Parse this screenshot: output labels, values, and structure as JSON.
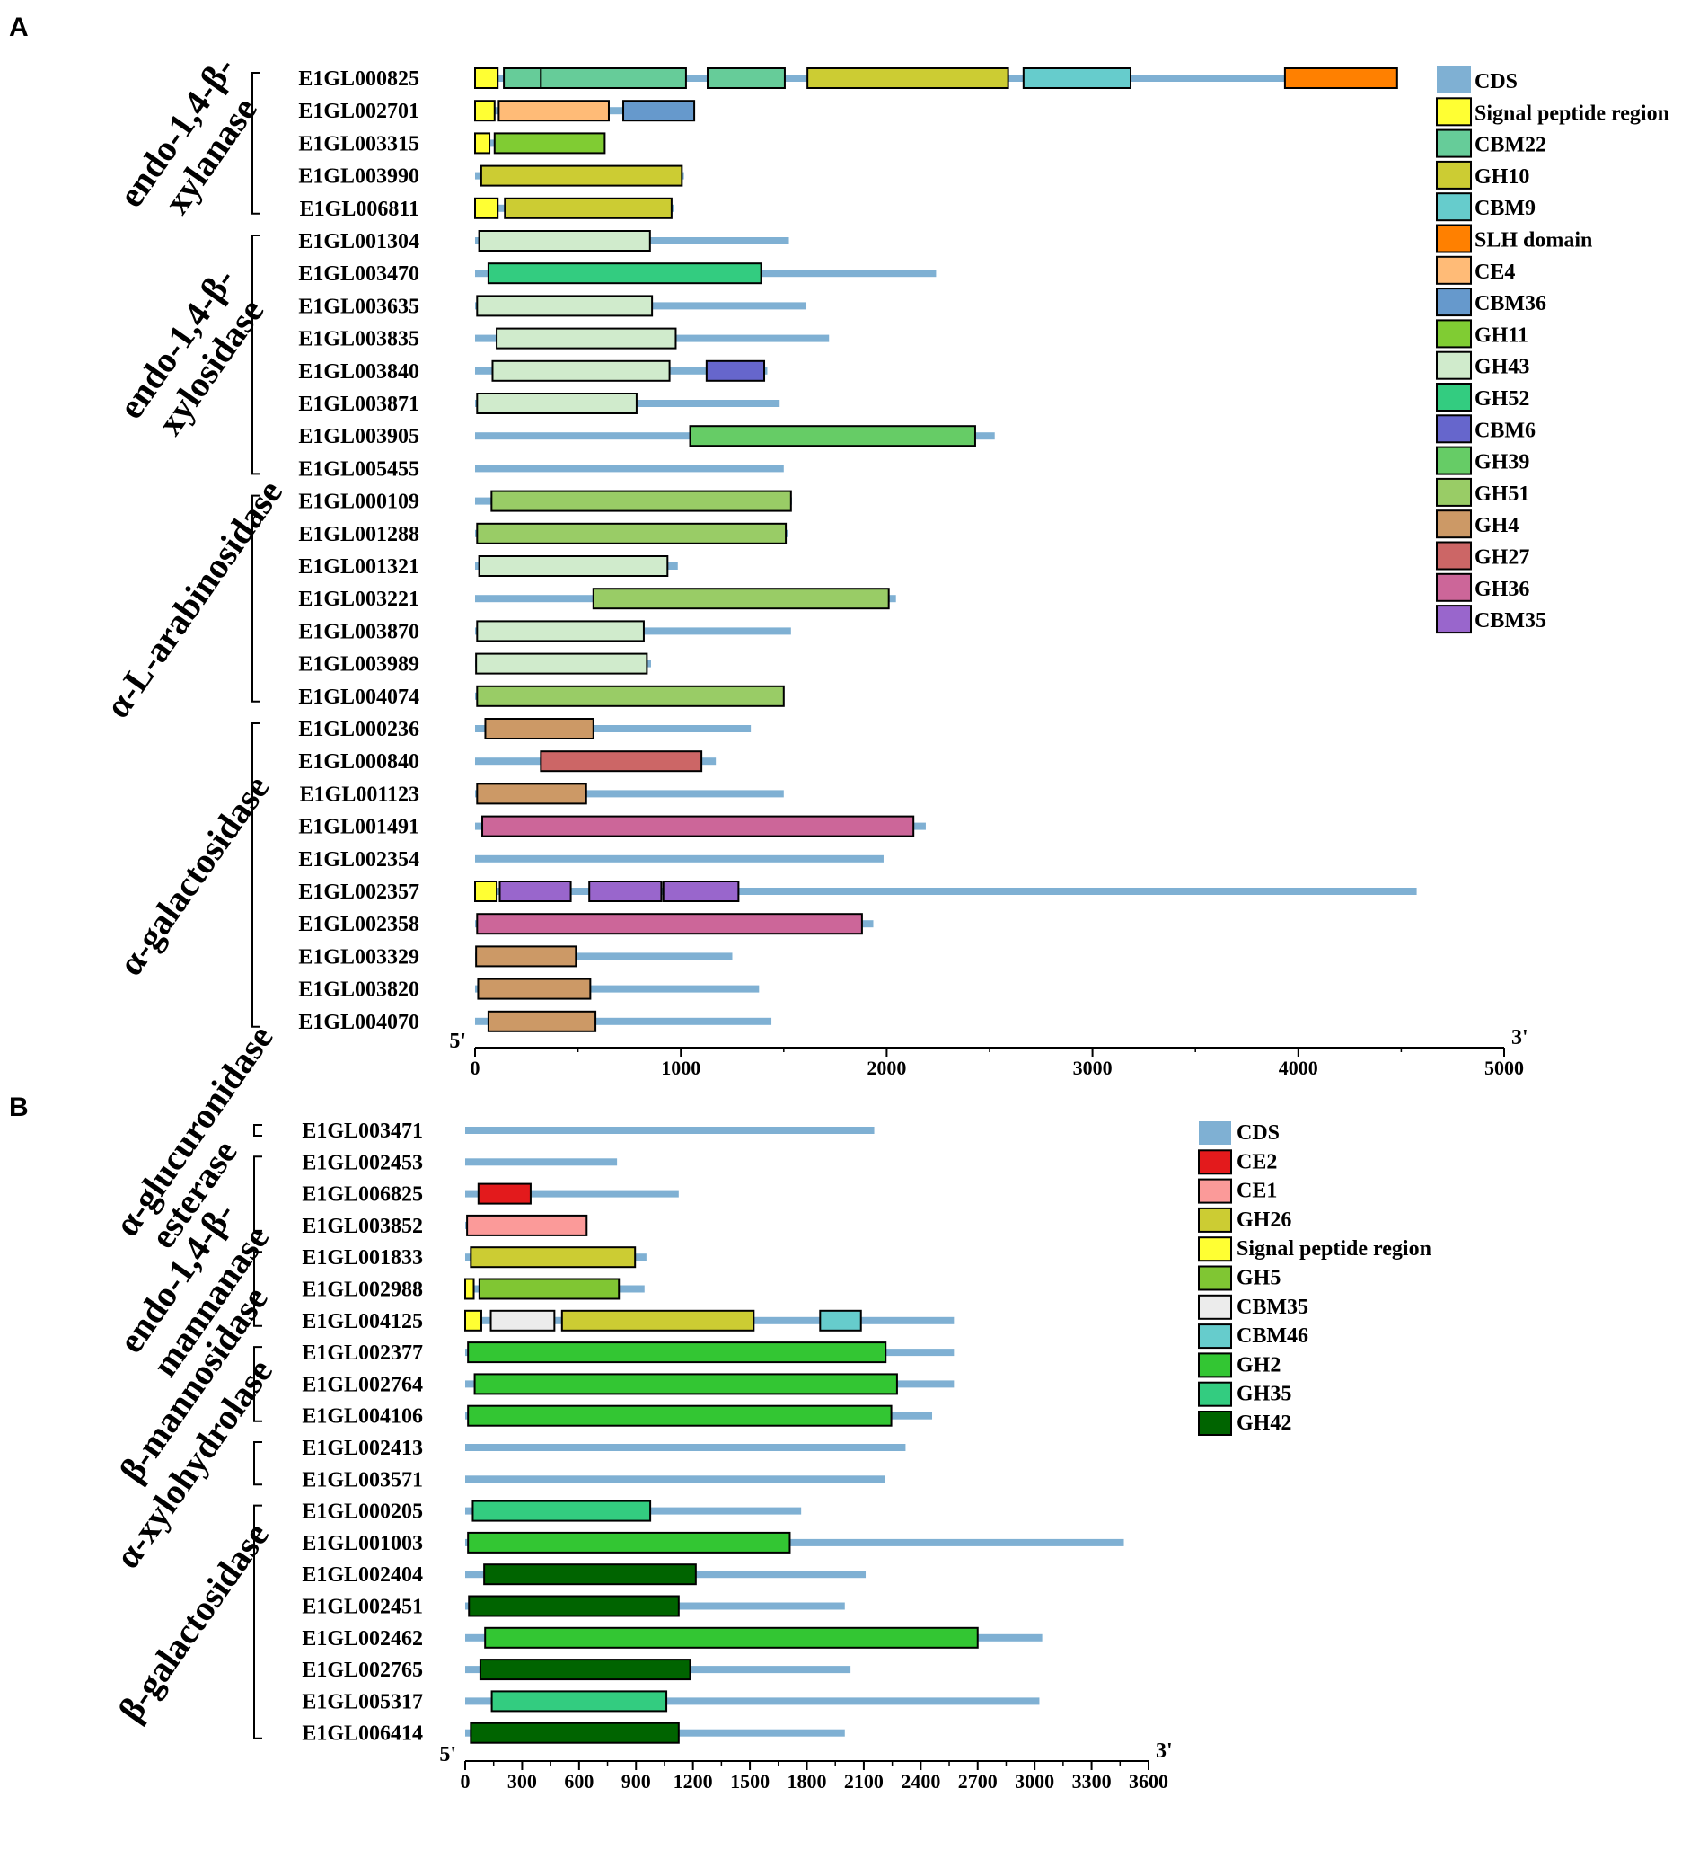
{
  "panels": [
    {
      "id": "A",
      "label": "A",
      "axis": {
        "min": 0,
        "max": 5000,
        "ticks": [
          0,
          1000,
          2000,
          3000,
          4000,
          5000
        ],
        "minor_step": 500,
        "left_label": "5'",
        "right_label": "3'"
      },
      "families": [
        {
          "name_lines": [
            "endo-1,4-β-",
            "xylanase"
          ],
          "first": 0,
          "last": 4
        },
        {
          "name_lines": [
            "endo-1,4-β-",
            "xylosidase"
          ],
          "first": 5,
          "last": 12
        },
        {
          "name_lines": [
            "α-L-arabinosidase"
          ],
          "first": 13,
          "last": 19
        },
        {
          "name_lines": [
            "α-galactosidase"
          ],
          "first": 20,
          "last": 29
        }
      ],
      "genes": [
        {
          "id": "E1GL000825",
          "cds": 4480,
          "domains": [
            {
              "t": "Signal peptide region",
              "s": 0,
              "e": 110
            },
            {
              "t": "CBM22",
              "s": 140,
              "e": 320
            },
            {
              "t": "CBM22",
              "s": 320,
              "e": 1025
            },
            {
              "t": "CBM22",
              "s": 1130,
              "e": 1505
            },
            {
              "t": "GH10",
              "s": 1615,
              "e": 2590
            },
            {
              "t": "CBM9",
              "s": 2665,
              "e": 3185
            },
            {
              "t": "SLH domain",
              "s": 3935,
              "e": 4480
            }
          ]
        },
        {
          "id": "E1GL002701",
          "cds": 1065,
          "domains": [
            {
              "t": "Signal peptide region",
              "s": 0,
              "e": 95
            },
            {
              "t": "CE4",
              "s": 115,
              "e": 650
            },
            {
              "t": "CBM36",
              "s": 720,
              "e": 1065
            }
          ]
        },
        {
          "id": "E1GL003315",
          "cds": 630,
          "domains": [
            {
              "t": "Signal peptide region",
              "s": 0,
              "e": 70
            },
            {
              "t": "GH11",
              "s": 95,
              "e": 630
            }
          ]
        },
        {
          "id": "E1GL003990",
          "cds": 1015,
          "domains": [
            {
              "t": "GH10",
              "s": 30,
              "e": 1005
            }
          ]
        },
        {
          "id": "E1GL006811",
          "cds": 965,
          "domains": [
            {
              "t": "Signal peptide region",
              "s": 0,
              "e": 110
            },
            {
              "t": "GH10",
              "s": 145,
              "e": 955
            }
          ]
        },
        {
          "id": "E1GL001304",
          "cds": 1525,
          "domains": [
            {
              "t": "GH43",
              "s": 20,
              "e": 850
            }
          ]
        },
        {
          "id": "E1GL003470",
          "cds": 2240,
          "domains": [
            {
              "t": "GH52",
              "s": 65,
              "e": 1390
            }
          ]
        },
        {
          "id": "E1GL003635",
          "cds": 1610,
          "domains": [
            {
              "t": "GH43",
              "s": 10,
              "e": 860
            }
          ]
        },
        {
          "id": "E1GL003835",
          "cds": 1720,
          "domains": [
            {
              "t": "GH43",
              "s": 105,
              "e": 975
            }
          ]
        },
        {
          "id": "E1GL003840",
          "cds": 1420,
          "domains": [
            {
              "t": "GH43",
              "s": 85,
              "e": 945
            },
            {
              "t": "CBM6",
              "s": 1125,
              "e": 1405
            }
          ]
        },
        {
          "id": "E1GL003871",
          "cds": 1480,
          "domains": [
            {
              "t": "GH43",
              "s": 10,
              "e": 785
            }
          ]
        },
        {
          "id": "E1GL003905",
          "cds": 2525,
          "domains": [
            {
              "t": "GH39",
              "s": 1045,
              "e": 2430
            }
          ]
        },
        {
          "id": "E1GL005455",
          "cds": 1500,
          "domains": []
        },
        {
          "id": "E1GL000109",
          "cds": 1540,
          "domains": [
            {
              "t": "GH51",
              "s": 80,
              "e": 1535
            }
          ]
        },
        {
          "id": "E1GL001288",
          "cds": 1520,
          "domains": [
            {
              "t": "GH51",
              "s": 10,
              "e": 1510
            }
          ]
        },
        {
          "id": "E1GL001321",
          "cds": 985,
          "domains": [
            {
              "t": "GH43",
              "s": 20,
              "e": 935
            }
          ]
        },
        {
          "id": "E1GL003221",
          "cds": 2045,
          "domains": [
            {
              "t": "GH51",
              "s": 575,
              "e": 2010
            }
          ]
        },
        {
          "id": "E1GL003870",
          "cds": 1535,
          "domains": [
            {
              "t": "GH43",
              "s": 10,
              "e": 820
            }
          ]
        },
        {
          "id": "E1GL003989",
          "cds": 855,
          "domains": [
            {
              "t": "GH43",
              "s": 5,
              "e": 835
            }
          ]
        },
        {
          "id": "E1GL004074",
          "cds": 1500,
          "domains": [
            {
              "t": "GH51",
              "s": 10,
              "e": 1500
            }
          ]
        },
        {
          "id": "E1GL000236",
          "cds": 1340,
          "domains": [
            {
              "t": "GH4",
              "s": 50,
              "e": 575
            }
          ]
        },
        {
          "id": "E1GL000840",
          "cds": 1170,
          "domains": [
            {
              "t": "GH27",
              "s": 320,
              "e": 1100
            }
          ]
        },
        {
          "id": "E1GL001123",
          "cds": 1500,
          "domains": [
            {
              "t": "GH4",
              "s": 10,
              "e": 540
            }
          ]
        },
        {
          "id": "E1GL001491",
          "cds": 2190,
          "domains": [
            {
              "t": "GH36",
              "s": 35,
              "e": 2130
            }
          ]
        },
        {
          "id": "E1GL002354",
          "cds": 1985,
          "domains": []
        },
        {
          "id": "E1GL002357",
          "cds": 4575,
          "domains": [
            {
              "t": "Signal peptide region",
              "s": 0,
              "e": 105
            },
            {
              "t": "CBM35",
              "s": 120,
              "e": 465
            },
            {
              "t": "CBM35",
              "s": 555,
              "e": 905
            },
            {
              "t": "CBM35",
              "s": 915,
              "e": 1280
            }
          ]
        },
        {
          "id": "E1GL002358",
          "cds": 1935,
          "domains": [
            {
              "t": "GH36",
              "s": 10,
              "e": 1880
            }
          ]
        },
        {
          "id": "E1GL003329",
          "cds": 1250,
          "domains": [
            {
              "t": "GH4",
              "s": 5,
              "e": 490
            }
          ]
        },
        {
          "id": "E1GL003820",
          "cds": 1380,
          "domains": [
            {
              "t": "GH4",
              "s": 15,
              "e": 560
            }
          ]
        },
        {
          "id": "E1GL004070",
          "cds": 1440,
          "domains": [
            {
              "t": "GH4",
              "s": 65,
              "e": 585
            }
          ]
        }
      ],
      "legend": [
        "CDS",
        "Signal peptide region",
        "CBM22",
        "GH10",
        "CBM9",
        "SLH domain",
        "CE4",
        "CBM36",
        "GH11",
        "GH43",
        "GH52",
        "CBM6",
        "GH39",
        "GH51",
        "GH4",
        "GH27",
        "GH36",
        "CBM35"
      ],
      "colors": {
        "CDS": "#7fb0d3",
        "Signal peptide region": "#ffff33",
        "CBM22": "#66cc99",
        "GH10": "#cccc33",
        "CBM9": "#66cccc",
        "SLH domain": "#ff8000",
        "CE4": "#ffbb77",
        "CBM36": "#6699cc",
        "GH11": "#80cc33",
        "GH43": "#d0ebcc",
        "GH52": "#33cc80",
        "CBM6": "#6666cc",
        "GH39": "#66cc66",
        "GH51": "#99cc66",
        "GH4": "#cc9966",
        "GH27": "#cc6666",
        "GH36": "#cc6699",
        "CBM35": "#9966cc"
      }
    },
    {
      "id": "B",
      "label": "B",
      "axis": {
        "min": 0,
        "max": 3600,
        "ticks": [
          0,
          300,
          600,
          900,
          1200,
          1500,
          1800,
          2100,
          2400,
          2700,
          3000,
          3300,
          3600
        ],
        "minor_step": 150,
        "left_label": "5'",
        "right_label": "3'"
      },
      "families": [
        {
          "name_lines": [
            "α-glucuronidase"
          ],
          "first": 0,
          "last": 0
        },
        {
          "name_lines": [
            "esterase"
          ],
          "first": 1,
          "last": 3
        },
        {
          "name_lines": [
            "endo-1,4-β-",
            "mannanase"
          ],
          "first": 4,
          "last": 6
        },
        {
          "name_lines": [
            "β-mannosidase"
          ],
          "first": 7,
          "last": 9
        },
        {
          "name_lines": [
            "α-xylohydrolase"
          ],
          "first": 10,
          "last": 11
        },
        {
          "name_lines": [
            "β-galactosidase"
          ],
          "first": 12,
          "last": 19
        }
      ],
      "genes": [
        {
          "id": "E1GL003471",
          "cds": 2155,
          "domains": []
        },
        {
          "id": "E1GL002453",
          "cds": 800,
          "domains": []
        },
        {
          "id": "E1GL006825",
          "cds": 1125,
          "domains": [
            {
              "t": "CE2",
              "s": 70,
              "e": 345
            }
          ]
        },
        {
          "id": "E1GL003852",
          "cds": 640,
          "domains": [
            {
              "t": "CE1",
              "s": 10,
              "e": 640
            }
          ]
        },
        {
          "id": "E1GL001833",
          "cds": 955,
          "domains": [
            {
              "t": "GH26",
              "s": 30,
              "e": 895
            }
          ]
        },
        {
          "id": "E1GL002988",
          "cds": 945,
          "domains": [
            {
              "t": "Signal peptide region",
              "s": 0,
              "e": 45
            },
            {
              "t": "GH5",
              "s": 75,
              "e": 810
            }
          ]
        },
        {
          "id": "E1GL004125",
          "cds": 2575,
          "domains": [
            {
              "t": "Signal peptide region",
              "s": 0,
              "e": 85
            },
            {
              "t": "CBM35",
              "s": 135,
              "e": 470
            },
            {
              "t": "GH26",
              "s": 510,
              "e": 1520
            },
            {
              "t": "CBM46",
              "s": 1870,
              "e": 2085
            }
          ]
        },
        {
          "id": "E1GL002377",
          "cds": 2575,
          "domains": [
            {
              "t": "GH2",
              "s": 15,
              "e": 2215
            }
          ]
        },
        {
          "id": "E1GL002764",
          "cds": 2575,
          "domains": [
            {
              "t": "GH2",
              "s": 50,
              "e": 2275
            }
          ]
        },
        {
          "id": "E1GL004106",
          "cds": 2460,
          "domains": [
            {
              "t": "GH2",
              "s": 15,
              "e": 2245
            }
          ]
        },
        {
          "id": "E1GL002413",
          "cds": 2320,
          "domains": []
        },
        {
          "id": "E1GL003571",
          "cds": 2210,
          "domains": []
        },
        {
          "id": "E1GL000205",
          "cds": 1770,
          "domains": [
            {
              "t": "GH35",
              "s": 40,
              "e": 975
            }
          ]
        },
        {
          "id": "E1GL001003",
          "cds": 3470,
          "domains": [
            {
              "t": "GH2",
              "s": 15,
              "e": 1710
            }
          ]
        },
        {
          "id": "E1GL002404",
          "cds": 2110,
          "domains": [
            {
              "t": "GH42",
              "s": 100,
              "e": 1215
            }
          ]
        },
        {
          "id": "E1GL002451",
          "cds": 2000,
          "domains": [
            {
              "t": "GH42",
              "s": 20,
              "e": 1125
            }
          ]
        },
        {
          "id": "E1GL002462",
          "cds": 3040,
          "domains": [
            {
              "t": "GH2",
              "s": 105,
              "e": 2700
            }
          ]
        },
        {
          "id": "E1GL002765",
          "cds": 2030,
          "domains": [
            {
              "t": "GH42",
              "s": 80,
              "e": 1185
            }
          ]
        },
        {
          "id": "E1GL005317",
          "cds": 3025,
          "domains": [
            {
              "t": "GH35",
              "s": 140,
              "e": 1060
            }
          ]
        },
        {
          "id": "E1GL006414",
          "cds": 2000,
          "domains": [
            {
              "t": "GH42",
              "s": 30,
              "e": 1125
            }
          ]
        }
      ],
      "legend": [
        "CDS",
        "CE2",
        "CE1",
        "GH26",
        "Signal peptide region",
        "GH5",
        "CBM35",
        "CBM46",
        "GH2",
        "GH35",
        "GH42"
      ],
      "colors": {
        "CDS": "#7fb0d3",
        "CE2": "#e31a1c",
        "CE1": "#fb9a99",
        "GH26": "#cccc33",
        "Signal peptide region": "#ffff33",
        "GH5": "#80c633",
        "CBM35": "#ececec",
        "CBM46": "#66cccc",
        "GH2": "#33c633",
        "GH35": "#33cc80",
        "GH42": "#006400"
      }
    }
  ]
}
